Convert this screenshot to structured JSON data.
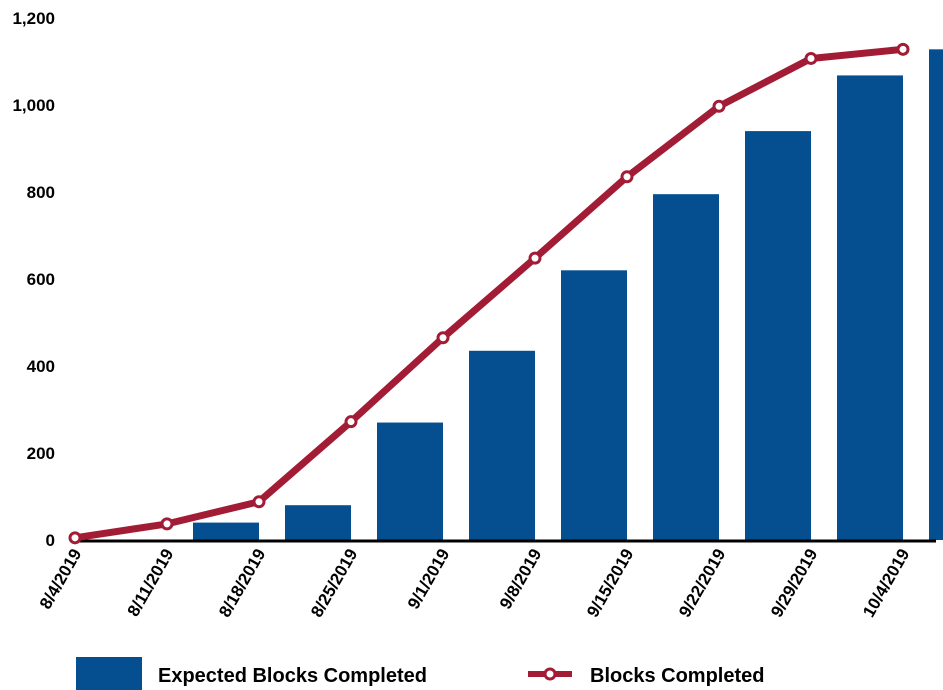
{
  "chart_data": {
    "type": "bar",
    "categories": [
      "8/4/2019",
      "8/11/2019",
      "8/18/2019",
      "8/25/2019",
      "9/1/2019",
      "9/8/2019",
      "9/15/2019",
      "9/22/2019",
      "9/29/2019",
      "10/4/2019"
    ],
    "series": [
      {
        "name": "Expected Blocks Completed",
        "type": "bar",
        "color": "#054f91",
        "values": [
          0,
          40,
          80,
          270,
          435,
          620,
          795,
          940,
          1068,
          1128
        ]
      },
      {
        "name": "Blocks Completed",
        "type": "line",
        "color": "#a31c36",
        "values": [
          5,
          37,
          88,
          272,
          465,
          648,
          835,
          997,
          1107,
          1128
        ]
      }
    ],
    "y_ticks": [
      "0",
      "200",
      "400",
      "600",
      "800",
      "1,000",
      "1,200"
    ],
    "ylim": [
      0,
      1200
    ],
    "grid": false,
    "legend_position": "bottom"
  }
}
